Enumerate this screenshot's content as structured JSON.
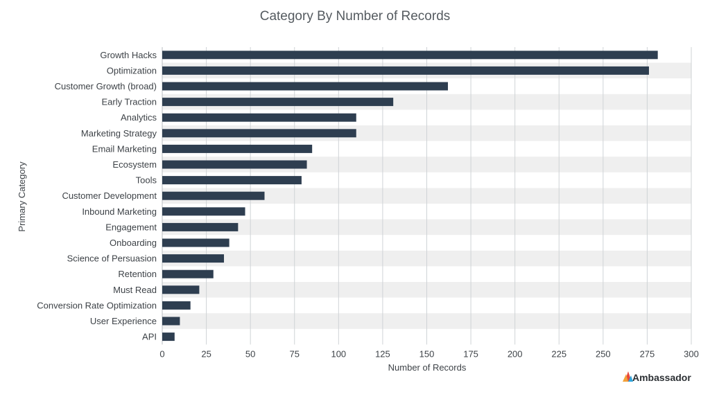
{
  "chart_data": {
    "type": "bar",
    "orientation": "horizontal",
    "title": "Category By Number of Records",
    "xlabel": "Number of Records",
    "ylabel": "Primary Category",
    "xlim": [
      0,
      300
    ],
    "xticks": [
      0,
      25,
      50,
      75,
      100,
      125,
      150,
      175,
      200,
      225,
      250,
      275,
      300
    ],
    "grid": true,
    "categories": [
      "Growth Hacks",
      "Optimization",
      "Customer Growth (broad)",
      "Early Traction",
      "Analytics",
      "Marketing Strategy",
      "Email Marketing",
      "Ecosystem",
      "Tools",
      "Customer Development",
      "Inbound Marketing",
      "Engagement",
      "Onboarding",
      "Science of Persuasion",
      "Retention",
      "Must Read",
      "Conversion Rate Optimization",
      "User Experience",
      "API"
    ],
    "values": [
      281,
      276,
      162,
      131,
      110,
      110,
      85,
      82,
      79,
      58,
      47,
      43,
      38,
      35,
      29,
      21,
      16,
      10,
      7
    ],
    "colors": {
      "bar": "#2e3e50",
      "band": "#efefef",
      "grid": "#cfd3d6"
    }
  },
  "brand": {
    "name": "Ambassador",
    "icon": "ambassador-logo-icon"
  }
}
